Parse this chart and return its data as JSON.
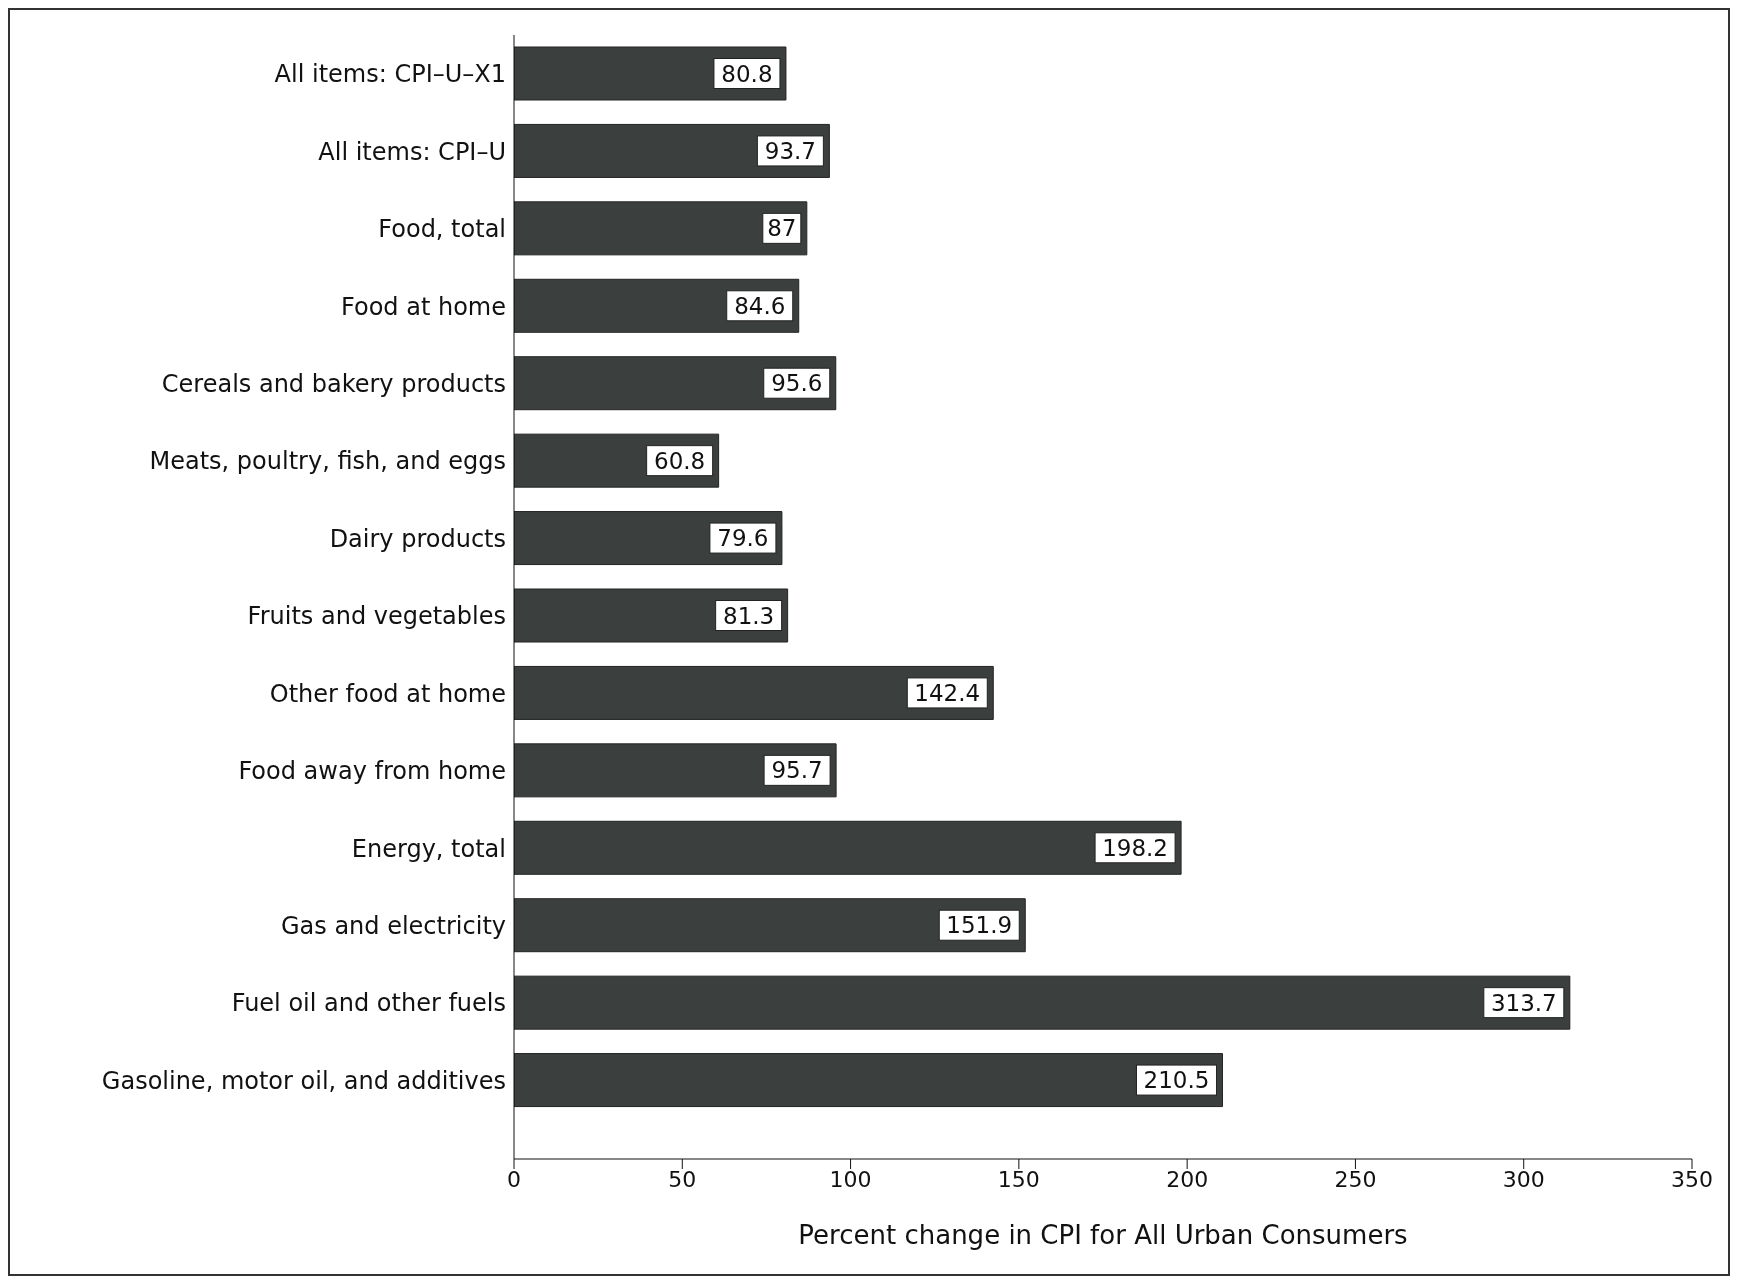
{
  "chart_data": {
    "type": "bar",
    "orientation": "horizontal",
    "xlabel": "Percent change in CPI for All Urban Consumers",
    "categories": [
      "All items:  CPI–U–X1",
      "All items:  CPI–U",
      "Food, total",
      "Food at home",
      "Cereals and bakery products",
      "Meats, poultry, fish, and eggs",
      "Dairy products",
      "Fruits and vegetables",
      "Other food at home",
      "Food away from home",
      "Energy, total",
      "Gas and electricity",
      "Fuel oil and other fuels",
      "Gasoline, motor oil, and additives"
    ],
    "values": [
      80.8,
      93.7,
      87,
      84.6,
      95.6,
      60.8,
      79.6,
      81.3,
      142.4,
      95.7,
      198.2,
      151.9,
      313.7,
      210.5
    ],
    "color": "#3b403e",
    "xlim": [
      0,
      350
    ],
    "xticks": [
      0,
      50,
      100,
      150,
      200,
      250,
      300,
      350
    ],
    "data_labels": true,
    "grid": false,
    "legend": false
  }
}
